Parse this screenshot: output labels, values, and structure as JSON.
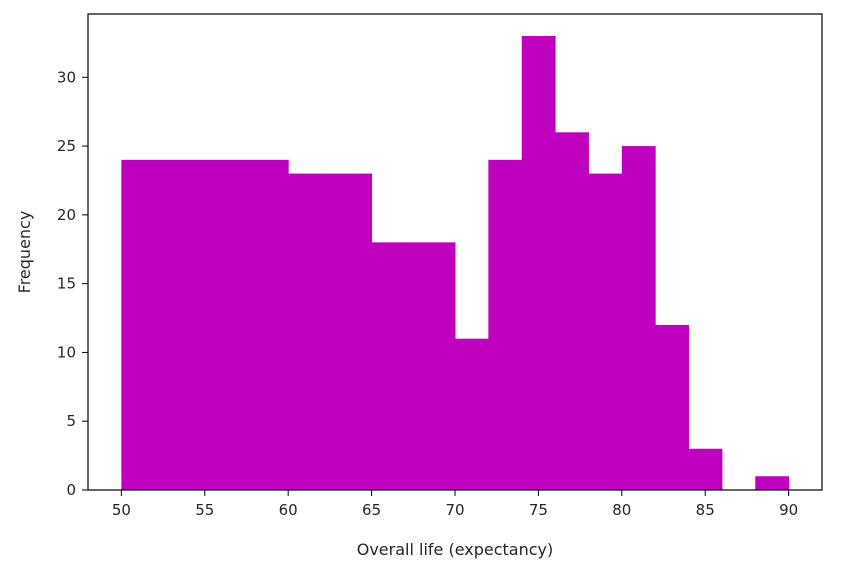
{
  "chart_data": {
    "type": "bar",
    "subtype": "histogram",
    "title": "",
    "xlabel": "Overall life (expectancy)",
    "ylabel": "Frequency",
    "xlim": [
      48,
      92
    ],
    "ylim": [
      0,
      34.6
    ],
    "x_ticks": [
      50,
      55,
      60,
      65,
      70,
      75,
      80,
      85,
      90
    ],
    "y_ticks": [
      0,
      5,
      10,
      15,
      20,
      25,
      30
    ],
    "bins": [
      {
        "start": 50,
        "end": 52,
        "count": 24
      },
      {
        "start": 52,
        "end": 54,
        "count": 24
      },
      {
        "start": 54,
        "end": 56,
        "count": 24
      },
      {
        "start": 56,
        "end": 58,
        "count": 24
      },
      {
        "start": 58,
        "end": 60,
        "count": 24
      },
      {
        "start": 60,
        "end": 62,
        "count": 23
      },
      {
        "start": 62,
        "end": 64,
        "count": 23
      },
      {
        "start": 64,
        "end": 65,
        "count": 23
      },
      {
        "start": 65,
        "end": 67,
        "count": 18
      },
      {
        "start": 67,
        "end": 70,
        "count": 18
      },
      {
        "start": 70,
        "end": 72,
        "count": 11
      },
      {
        "start": 72,
        "end": 74,
        "count": 24
      },
      {
        "start": 74,
        "end": 76,
        "count": 33
      },
      {
        "start": 76,
        "end": 78,
        "count": 26
      },
      {
        "start": 78,
        "end": 80,
        "count": 23
      },
      {
        "start": 80,
        "end": 82,
        "count": 25
      },
      {
        "start": 82,
        "end": 84,
        "count": 12
      },
      {
        "start": 84,
        "end": 86,
        "count": 3
      },
      {
        "start": 86,
        "end": 88,
        "count": 0
      },
      {
        "start": 88,
        "end": 90,
        "count": 1
      }
    ],
    "bar_color": "#bf00bf",
    "grid": false,
    "legend": "none"
  }
}
